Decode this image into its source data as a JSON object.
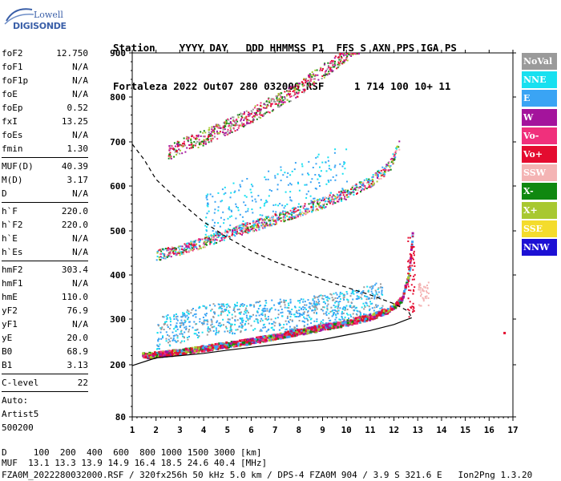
{
  "logo": {
    "line1": "Lowell",
    "line2": "DIGISONDE"
  },
  "header": {
    "line1": "Station    YYYY DAY   DDD HHMMSS P1  FFS S AXN PPS IGA PS",
    "line2": "Fortaleza 2022 Out07 280 032000 RSF     1 714 100 10+ 11"
  },
  "params": {
    "group1": [
      {
        "k": "foF2",
        "v": "12.750"
      },
      {
        "k": "foF1",
        "v": "N/A"
      },
      {
        "k": "foF1p",
        "v": "N/A"
      },
      {
        "k": "foE",
        "v": "N/A"
      },
      {
        "k": "foEp",
        "v": "0.52"
      },
      {
        "k": "fxI",
        "v": "13.25"
      },
      {
        "k": "foEs",
        "v": "N/A"
      },
      {
        "k": "fmin",
        "v": "1.30"
      }
    ],
    "group2": [
      {
        "k": "MUF(D)",
        "v": "40.39"
      },
      {
        "k": "M(D)",
        "v": "3.17"
      },
      {
        "k": "D",
        "v": "N/A"
      }
    ],
    "group3": [
      {
        "k": "h`F",
        "v": "220.0"
      },
      {
        "k": "h`F2",
        "v": "220.0"
      },
      {
        "k": "h`E",
        "v": "N/A"
      },
      {
        "k": "h`Es",
        "v": "N/A"
      }
    ],
    "group4": [
      {
        "k": "hmF2",
        "v": "303.4"
      },
      {
        "k": "hmF1",
        "v": "N/A"
      },
      {
        "k": "hmE",
        "v": "110.0"
      },
      {
        "k": "yF2",
        "v": "76.9"
      },
      {
        "k": "yF1",
        "v": "N/A"
      },
      {
        "k": "yE",
        "v": "20.0"
      },
      {
        "k": "B0",
        "v": "68.9"
      },
      {
        "k": "B1",
        "v": "3.13"
      }
    ],
    "clevel": {
      "k": "C-level",
      "v": "22"
    },
    "auto": [
      "Auto:",
      "Artist5",
      "500200"
    ]
  },
  "legend": [
    {
      "label": "NoVal",
      "color": "#9a9a9a"
    },
    {
      "label": "NNE",
      "color": "#18e0f0"
    },
    {
      "label": "E",
      "color": "#3aa4f4"
    },
    {
      "label": "W",
      "color": "#a4149c"
    },
    {
      "label": "Vo-",
      "color": "#f0307c"
    },
    {
      "label": "Vo+",
      "color": "#e40c30"
    },
    {
      "label": "SSW",
      "color": "#f4b4b4"
    },
    {
      "label": "X-",
      "color": "#108810"
    },
    {
      "label": "X+",
      "color": "#a8c830"
    },
    {
      "label": "SSE",
      "color": "#f4dc2c"
    },
    {
      "label": "NNW",
      "color": "#1c10d4"
    }
  ],
  "chart_data": {
    "type": "scatter",
    "xlim": [
      1,
      17
    ],
    "ylim": [
      80,
      900
    ],
    "x_ticks": [
      "1",
      "2",
      "3",
      "4",
      "5",
      "6",
      "7",
      "8",
      "9",
      "10",
      "11",
      "12",
      "13",
      "14",
      "15",
      "16",
      "17"
    ],
    "y_ticks": [
      "80",
      "200",
      "300",
      "400",
      "500",
      "600",
      "700",
      "800",
      "900"
    ],
    "y_tick_values": [
      80,
      200,
      300,
      400,
      500,
      600,
      700,
      800,
      900
    ],
    "y_scale": "nonlinear (virtual height, km)",
    "traces": [
      {
        "name": "first-hop O trace",
        "points": [
          [
            1.4,
            220
          ],
          [
            2,
            222
          ],
          [
            3,
            228
          ],
          [
            4,
            236
          ],
          [
            5,
            244
          ],
          [
            6,
            252
          ],
          [
            7,
            262
          ],
          [
            8,
            272
          ],
          [
            9,
            282
          ],
          [
            10,
            292
          ],
          [
            11,
            305
          ],
          [
            11.8,
            322
          ],
          [
            12.3,
            345
          ],
          [
            12.6,
            400
          ],
          [
            12.75,
            495
          ]
        ]
      },
      {
        "name": "scattered echoes",
        "points": [
          [
            2,
            245
          ],
          [
            4,
            275
          ],
          [
            6,
            282
          ],
          [
            8,
            290
          ],
          [
            10,
            305
          ],
          [
            11.5,
            330
          ]
        ]
      },
      {
        "name": "second-hop trace",
        "points": [
          [
            2,
            440
          ],
          [
            3,
            452
          ],
          [
            4,
            470
          ],
          [
            5,
            490
          ],
          [
            6,
            505
          ],
          [
            7,
            522
          ],
          [
            8,
            540
          ],
          [
            9,
            558
          ],
          [
            10,
            578
          ],
          [
            11,
            605
          ],
          [
            11.8,
            640
          ],
          [
            12.2,
            690
          ]
        ]
      },
      {
        "name": "third-hop trace",
        "points": [
          [
            2.5,
            665
          ],
          [
            3,
            680
          ],
          [
            4,
            700
          ],
          [
            5,
            725
          ],
          [
            6,
            750
          ],
          [
            7,
            780
          ],
          [
            8,
            810
          ],
          [
            9,
            850
          ],
          [
            10,
            890
          ],
          [
            10.5,
            905
          ]
        ]
      }
    ],
    "profile_solid": [
      [
        1,
        198
      ],
      [
        2,
        215
      ],
      [
        3,
        220
      ],
      [
        4,
        225
      ],
      [
        5,
        232
      ],
      [
        6,
        238
      ],
      [
        7,
        244
      ],
      [
        8,
        250
      ],
      [
        9,
        255
      ],
      [
        10,
        265
      ],
      [
        11,
        275
      ],
      [
        12,
        288
      ],
      [
        12.6,
        300
      ],
      [
        12.75,
        303
      ]
    ],
    "profile_dashed": [
      [
        1,
        695
      ],
      [
        1.5,
        660
      ],
      [
        2,
        615
      ],
      [
        3,
        565
      ],
      [
        4,
        520
      ],
      [
        5,
        485
      ],
      [
        6,
        455
      ],
      [
        7,
        430
      ],
      [
        8,
        410
      ],
      [
        9,
        390
      ],
      [
        10,
        372
      ],
      [
        11,
        355
      ],
      [
        12,
        335
      ],
      [
        12.6,
        318
      ],
      [
        12.75,
        303
      ]
    ],
    "extra_points": [
      [
        16.6,
        272
      ]
    ]
  },
  "bottom": {
    "line1": "D     100  200  400  600  800 1000 1500 3000 [km]",
    "line2": "MUF  13.1 13.3 13.9 14.9 16.4 18.5 24.6 40.4 [MHz]",
    "line3": "FZA0M_2022280032000.RSF / 320fx256h 50 kHz 5.0 km / DPS-4 FZA0M 904 / 3.9 S 321.6 E   Ion2Png 1.3.20"
  }
}
